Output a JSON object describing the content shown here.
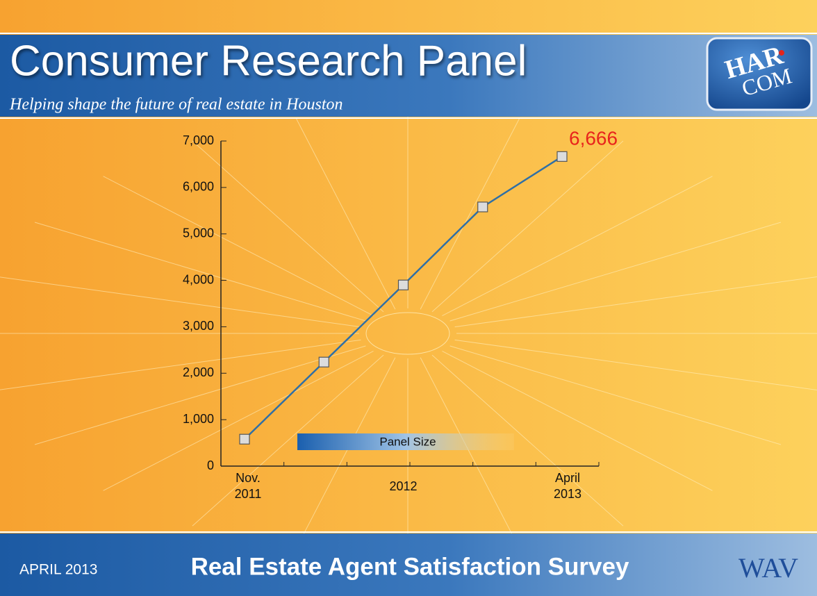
{
  "header": {
    "title": "Consumer Research Panel",
    "subtitle": "Helping shape the future of real estate in Houston",
    "logo_top": "HAR",
    "logo_bottom": "COM"
  },
  "chart_data": {
    "type": "line",
    "categories": [
      "Nov. 2011",
      null,
      "2012",
      null,
      "April 2013"
    ],
    "series": [
      {
        "name": "Panel Size",
        "color": "#2f6fa6",
        "values": [
          580,
          2240,
          3900,
          5580,
          6666
        ],
        "value_labels": [
          null,
          null,
          null,
          null,
          "6,666"
        ]
      }
    ],
    "ylim": [
      0,
      7000
    ],
    "yticks": [
      0,
      {
        "value": 1000,
        "label": "1,000"
      },
      {
        "value": 2000,
        "label": "2,000"
      },
      {
        "value": 3000,
        "label": "3,000"
      },
      {
        "value": 4000,
        "label": "4,000"
      },
      {
        "value": 5000,
        "label": "5,000"
      },
      {
        "value": 6000,
        "label": "6,000"
      },
      {
        "value": 7000,
        "label": "7,000"
      }
    ],
    "value_label_color": "#e8241c",
    "marker_color": "#dcdcdc"
  },
  "footer": {
    "date": "APRIL 2013",
    "title": "Real Estate Agent Satisfaction Survey",
    "logo": "WAV"
  }
}
